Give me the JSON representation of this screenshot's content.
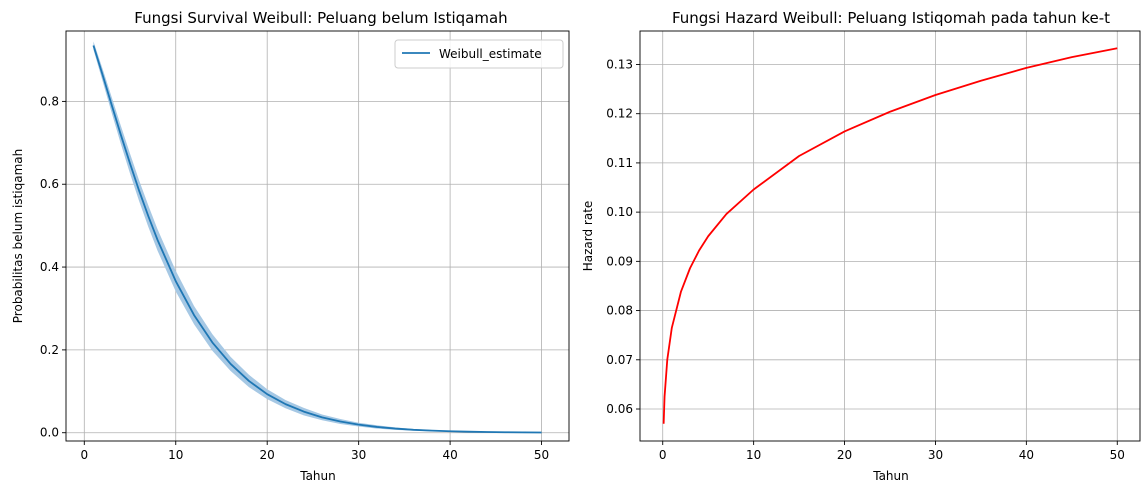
{
  "chart_data": [
    {
      "type": "line",
      "title": "Fungsi Survival Weibull: Peluang belum Istiqamah",
      "xlabel": "Tahun",
      "ylabel": "Probabilitas belum istiqamah",
      "xlim": [
        -2,
        53
      ],
      "ylim": [
        -0.02,
        0.97
      ],
      "xticks": [
        0,
        10,
        20,
        30,
        40,
        50
      ],
      "xtick_labels": [
        "0",
        "10",
        "20",
        "30",
        "40",
        "50"
      ],
      "yticks": [
        0,
        0.2,
        0.4,
        0.6,
        0.8
      ],
      "ytick_labels": [
        "0.0",
        "0.2",
        "0.4",
        "0.6",
        "0.8"
      ],
      "grid": true,
      "legend": "top-right",
      "series": [
        {
          "name": "Weibull_estimate",
          "color": "#1f77b4",
          "band_color": "#a6c8e4",
          "x": [
            1,
            2,
            3,
            4,
            5,
            6,
            7,
            8,
            10,
            12,
            14,
            16,
            18,
            20,
            22,
            24,
            26,
            28,
            30,
            32,
            34,
            36,
            38,
            40,
            42,
            44,
            46,
            48,
            50
          ],
          "y": [
            0.935,
            0.864,
            0.791,
            0.719,
            0.65,
            0.584,
            0.523,
            0.466,
            0.366,
            0.284,
            0.218,
            0.166,
            0.125,
            0.093,
            0.069,
            0.051,
            0.037,
            0.027,
            0.0195,
            0.014,
            0.01,
            0.007,
            0.005,
            0.0035,
            0.0025,
            0.0017,
            0.0012,
            0.0008,
            0.0006
          ],
          "y_lower": [
            0.925,
            0.849,
            0.772,
            0.697,
            0.626,
            0.559,
            0.497,
            0.44,
            0.341,
            0.262,
            0.198,
            0.149,
            0.11,
            0.081,
            0.059,
            0.042,
            0.03,
            0.021,
            0.015,
            0.01,
            0.007,
            0.005,
            0.0033,
            0.0022,
            0.0015,
            0.001,
            0.0007,
            0.0004,
            0.0003
          ],
          "y_upper": [
            0.945,
            0.879,
            0.81,
            0.741,
            0.674,
            0.609,
            0.549,
            0.492,
            0.391,
            0.306,
            0.238,
            0.183,
            0.14,
            0.105,
            0.079,
            0.06,
            0.044,
            0.033,
            0.024,
            0.018,
            0.013,
            0.009,
            0.0067,
            0.0048,
            0.0035,
            0.0024,
            0.0017,
            0.0012,
            0.0009
          ]
        }
      ]
    },
    {
      "type": "line",
      "title": "Fungsi Hazard Weibull: Peluang Istiqomah pada tahun ke-t",
      "xlabel": "Tahun",
      "ylabel": "Hazard rate",
      "xlim": [
        -2.5,
        52.5
      ],
      "ylim": [
        0.0535,
        0.1368
      ],
      "xticks": [
        0,
        10,
        20,
        30,
        40,
        50
      ],
      "xtick_labels": [
        "0",
        "10",
        "20",
        "30",
        "40",
        "50"
      ],
      "yticks": [
        0.06,
        0.07,
        0.08,
        0.09,
        0.1,
        0.11,
        0.12,
        0.13
      ],
      "ytick_labels": [
        "0.06",
        "0.07",
        "0.08",
        "0.09",
        "0.10",
        "0.11",
        "0.12",
        "0.13"
      ],
      "grid": true,
      "series": [
        {
          "color": "#ff0000",
          "x": [
            0.1,
            0.2,
            0.5,
            1,
            2,
            3,
            4,
            5,
            7,
            10,
            15,
            20,
            25,
            30,
            35,
            40,
            45,
            50
          ],
          "y": [
            0.057,
            0.0625,
            0.07,
            0.0765,
            0.0838,
            0.0886,
            0.0922,
            0.0951,
            0.0996,
            0.1046,
            0.1114,
            0.1164,
            0.1204,
            0.1238,
            0.1267,
            0.1293,
            0.1315,
            0.1333
          ]
        }
      ]
    }
  ]
}
